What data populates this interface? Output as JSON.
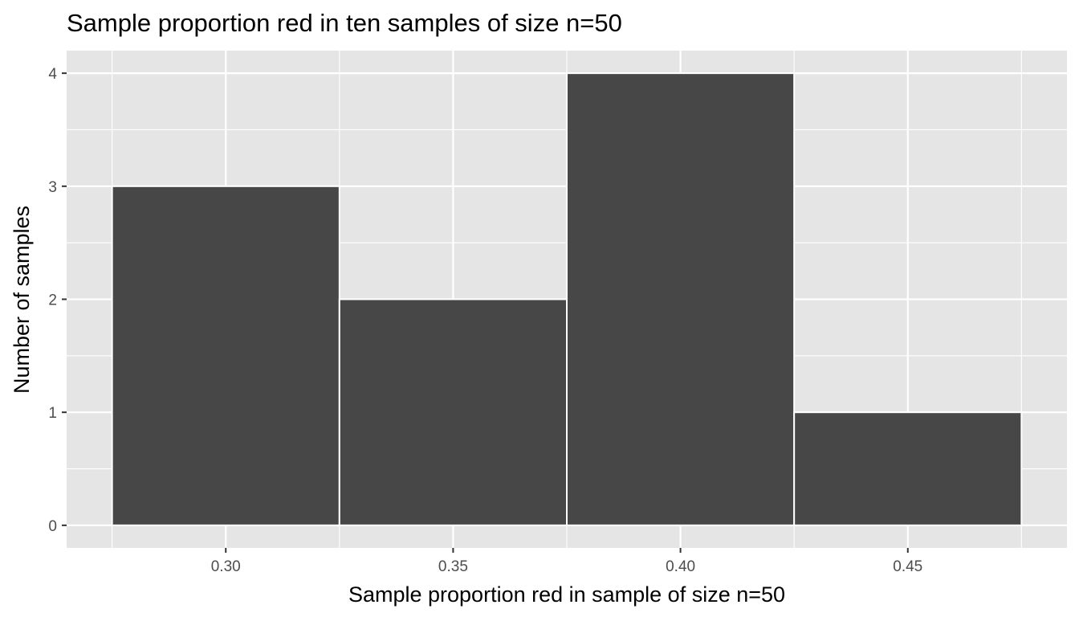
{
  "chart_data": {
    "type": "bar",
    "title": "Sample proportion red in ten samples of size n=50",
    "xlabel": "Sample proportion red in sample of size n=50",
    "ylabel": "Number of samples",
    "bins": [
      {
        "x_start": 0.275,
        "x_end": 0.325,
        "count": 3
      },
      {
        "x_start": 0.325,
        "x_end": 0.375,
        "count": 2
      },
      {
        "x_start": 0.375,
        "x_end": 0.425,
        "count": 4
      },
      {
        "x_start": 0.425,
        "x_end": 0.475,
        "count": 1
      }
    ],
    "x_ticks": [
      0.3,
      0.35,
      0.4,
      0.45
    ],
    "x_tick_labels": [
      "0.30",
      "0.35",
      "0.40",
      "0.45"
    ],
    "y_ticks": [
      0,
      1,
      2,
      3,
      4
    ],
    "y_tick_labels": [
      "0",
      "1",
      "2",
      "3",
      "4"
    ],
    "xlim": [
      0.265,
      0.485
    ],
    "ylim": [
      -0.2,
      4.2
    ],
    "grid": true,
    "colors": {
      "panel_background": "#e5e5e5",
      "grid": "#ffffff",
      "bar_fill": "#474747",
      "bar_outline": "#ffffff",
      "tick_text": "#4d4d4d",
      "text": "#000000"
    }
  }
}
